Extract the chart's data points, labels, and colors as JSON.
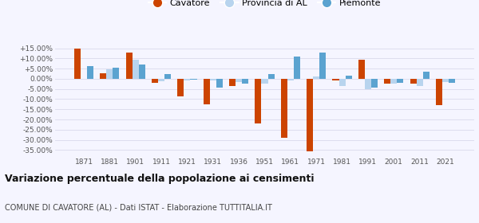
{
  "years": [
    1871,
    1881,
    1901,
    1911,
    1921,
    1931,
    1936,
    1951,
    1961,
    1971,
    1981,
    1991,
    2001,
    2011,
    2021
  ],
  "cavatore": [
    14.8,
    2.8,
    12.8,
    -2.0,
    -8.5,
    -12.5,
    -3.5,
    -22.0,
    -29.0,
    -35.5,
    -1.0,
    9.5,
    -2.5,
    -2.5,
    -13.0
  ],
  "provincia_al": [
    -0.2,
    4.8,
    9.5,
    -1.2,
    -1.0,
    -1.0,
    -1.5,
    -2.5,
    -1.0,
    1.0,
    -3.5,
    -5.0,
    -2.5,
    -3.5,
    -1.5
  ],
  "piemonte": [
    6.2,
    5.3,
    7.0,
    2.2,
    -0.5,
    -4.5,
    -2.5,
    2.5,
    11.0,
    13.0,
    1.5,
    -4.5,
    -2.0,
    3.5,
    -2.0
  ],
  "cavatore_color": "#cc4400",
  "provincia_color": "#b8d4ee",
  "piemonte_color": "#5ba3d0",
  "ylim": [
    -38,
    19
  ],
  "yticks": [
    -35,
    -30,
    -25,
    -20,
    -15,
    -10,
    -5,
    0,
    5,
    10,
    15
  ],
  "ytick_labels": [
    "-35.00%",
    "-30.00%",
    "-25.00%",
    "-20.00%",
    "-15.00%",
    "-10.00%",
    "-5.00%",
    "0.00%",
    "+5.00%",
    "+10.00%",
    "+15.00%"
  ],
  "title": "Variazione percentuale della popolazione ai censimenti",
  "subtitle": "COMUNE DI CAVATORE (AL) - Dati ISTAT - Elaborazione TUTTITALIA.IT",
  "legend_labels": [
    "Cavatore",
    "Provincia di AL",
    "Piemonte"
  ],
  "bar_width": 0.25,
  "bg_color": "#f5f5ff",
  "grid_color": "#ddddee"
}
